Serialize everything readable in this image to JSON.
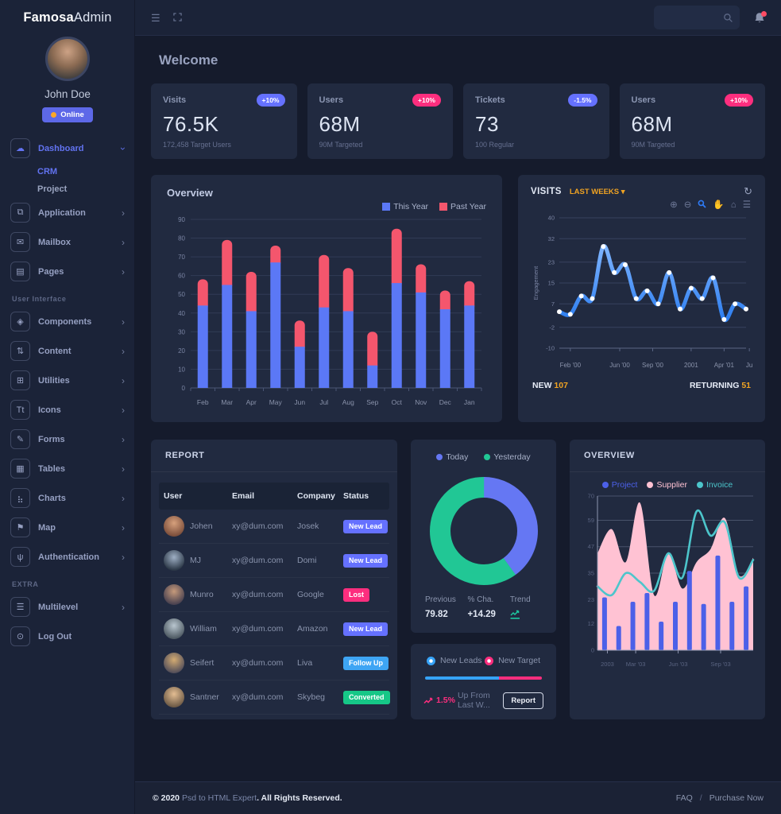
{
  "brand": {
    "bold": "Famosa",
    "light": "Admin"
  },
  "user": {
    "name": "John Doe",
    "status": "Online"
  },
  "welcome": "Welcome",
  "icons": {
    "hamburger": "☰",
    "refresh": "↻",
    "caret_down": "▾",
    "chevron_right": "›",
    "zoom_in": "⊕",
    "zoom_out": "⊖",
    "pan": "✋",
    "home": "⌂",
    "menu": "☰"
  },
  "sidebar": {
    "sections": [
      {
        "label": "",
        "items": [
          {
            "icon": "dashboard-icon",
            "glyph": "☁",
            "label": "Dashboard",
            "active": true,
            "chevron": "down",
            "children": [
              {
                "label": "CRM",
                "active": true
              },
              {
                "label": "Project",
                "active": false
              }
            ]
          },
          {
            "icon": "application-icon",
            "glyph": "⧉",
            "label": "Application",
            "chevron": "right"
          },
          {
            "icon": "mailbox-icon",
            "glyph": "✉",
            "label": "Mailbox",
            "chevron": "right"
          },
          {
            "icon": "pages-icon",
            "glyph": "▤",
            "label": "Pages",
            "chevron": "right"
          }
        ]
      },
      {
        "label": "User Interface",
        "items": [
          {
            "icon": "components-icon",
            "glyph": "◈",
            "label": "Components",
            "chevron": "right"
          },
          {
            "icon": "content-icon",
            "glyph": "⇅",
            "label": "Content",
            "chevron": "right"
          },
          {
            "icon": "utilities-icon",
            "glyph": "⊞",
            "label": "Utilities",
            "chevron": "right"
          },
          {
            "icon": "icons-icon",
            "glyph": "Tt",
            "label": "Icons",
            "chevron": "right"
          },
          {
            "icon": "forms-icon",
            "glyph": "✎",
            "label": "Forms",
            "chevron": "right"
          },
          {
            "icon": "tables-icon",
            "glyph": "▦",
            "label": "Tables",
            "chevron": "right"
          },
          {
            "icon": "charts-icon",
            "glyph": "⣦",
            "label": "Charts",
            "chevron": "right"
          },
          {
            "icon": "map-icon",
            "glyph": "⚑",
            "label": "Map",
            "chevron": "right"
          },
          {
            "icon": "authentication-icon",
            "glyph": "ψ",
            "label": "Authentication",
            "chevron": "right"
          }
        ]
      },
      {
        "label": "EXTRA",
        "items": [
          {
            "icon": "multilevel-icon",
            "glyph": "☰",
            "label": "Multilevel",
            "chevron": "right"
          },
          {
            "icon": "logout-icon",
            "glyph": "⊙",
            "label": "Log Out",
            "chevron": ""
          }
        ]
      }
    ]
  },
  "stat_cards": [
    {
      "title": "Visits",
      "badge": "+10%",
      "badge_color": "#6571ff",
      "value": "76.5K",
      "subtitle": "172,458 Target Users"
    },
    {
      "title": "Users",
      "badge": "+10%",
      "badge_color": "#fd2e7e",
      "value": "68M",
      "subtitle": "90M Targeted"
    },
    {
      "title": "Tickets",
      "badge": "-1.5%",
      "badge_color": "#6571ff",
      "value": "73",
      "subtitle": "100 Regular"
    },
    {
      "title": "Users",
      "badge": "+10%",
      "badge_color": "#fd2e7e",
      "value": "68M",
      "subtitle": "90M Targeted"
    }
  ],
  "chart_data": [
    {
      "id": "overview_bar",
      "type": "bar",
      "stacked": true,
      "title": "Overview",
      "categories": [
        "Feb",
        "Mar",
        "Apr",
        "May",
        "Jun",
        "Jul",
        "Aug",
        "Sep",
        "Oct",
        "Nov",
        "Dec",
        "Jan"
      ],
      "series": [
        {
          "name": "This Year",
          "color": "#5b78f6",
          "values": [
            44,
            55,
            41,
            67,
            22,
            43,
            41,
            12,
            56,
            51,
            42,
            44
          ]
        },
        {
          "name": "Past Year",
          "color": "#f4566d",
          "values": [
            14,
            24,
            21,
            9,
            14,
            28,
            23,
            18,
            29,
            15,
            10,
            13
          ]
        }
      ],
      "ylim": [
        0,
        90
      ],
      "yticks": [
        0,
        10,
        20,
        30,
        40,
        50,
        60,
        70,
        80,
        90
      ],
      "grid": true,
      "legend_position": "top-right"
    },
    {
      "id": "visits_line",
      "type": "line",
      "title": "VISITS",
      "subtitle": "LAST WEEKS",
      "ylabel": "Engagement",
      "ylim": [
        -10,
        40
      ],
      "yticks": [
        40,
        32,
        23,
        15,
        7,
        -2,
        -10
      ],
      "color": "#3f8efc",
      "marker_color": "#ffffff",
      "values": [
        4,
        3,
        10,
        9,
        29,
        19,
        22,
        9,
        12,
        7,
        19,
        5,
        13,
        9,
        17,
        1,
        7,
        5
      ],
      "xticks": [
        {
          "label": "Feb '00",
          "pos": 1
        },
        {
          "label": "Jun '00",
          "pos": 5.5
        },
        {
          "label": "Sep '00",
          "pos": 8.5
        },
        {
          "label": "2001",
          "pos": 12
        },
        {
          "label": "Apr '01",
          "pos": 15
        },
        {
          "label": "Ju",
          "pos": 17.3
        }
      ],
      "toolbar": [
        {
          "name": "zoom-in-icon",
          "glyph": "⊕",
          "active": false
        },
        {
          "name": "zoom-out-icon",
          "glyph": "⊖",
          "active": false
        },
        {
          "name": "zoom-box-icon",
          "glyph": "svg-magnifier",
          "active": true
        },
        {
          "name": "pan-icon",
          "glyph": "✋",
          "active": false
        },
        {
          "name": "home-icon",
          "glyph": "⌂",
          "active": false
        },
        {
          "name": "chart-menu-icon",
          "glyph": "☰",
          "active": false
        }
      ],
      "footer": {
        "new_label": "NEW",
        "new_value": "107",
        "returning_label": "RETURNING",
        "returning_value": "51"
      }
    },
    {
      "id": "today_donut",
      "type": "pie",
      "legend": [
        {
          "label": "Today",
          "color": "#6577f3",
          "value": 40
        },
        {
          "label": "Yesterday",
          "color": "#21c795",
          "value": 60
        }
      ],
      "stats": [
        {
          "label": "Previous",
          "value": "79.82"
        },
        {
          "label": "% Cha.",
          "value": "+14.29"
        },
        {
          "label": "Trend",
          "icon": "trend-up-icon",
          "icon_color": "#1dc9a0"
        }
      ]
    },
    {
      "id": "overview_mixed",
      "type": "area",
      "title": "OVERVIEW",
      "ylim": [
        0,
        70
      ],
      "yticks": [
        70,
        59,
        47,
        35,
        23,
        12,
        0
      ],
      "xticks": [
        {
          "label": "2003",
          "pos": 0.2
        },
        {
          "label": "Mar '03",
          "pos": 2.2
        },
        {
          "label": "Jun '03",
          "pos": 5.2
        },
        {
          "label": "Sep '03",
          "pos": 8.2
        }
      ],
      "series": [
        {
          "name": "Project",
          "type": "bar",
          "color": "#4c60e8",
          "values": [
            24,
            11,
            22,
            26,
            13,
            22,
            36,
            21,
            43,
            22,
            29
          ]
        },
        {
          "name": "Supplier",
          "type": "area",
          "color": "#ffc2d3",
          "values": [
            44,
            55,
            40,
            67,
            25,
            44,
            28,
            40,
            46,
            60,
            34,
            42
          ]
        },
        {
          "name": "Invoice",
          "type": "line",
          "color": "#4cc5cb",
          "values": [
            29,
            25,
            35,
            31,
            27,
            44,
            33,
            63,
            52,
            58,
            33,
            41
          ]
        }
      ]
    }
  ],
  "report": {
    "title": "REPORT",
    "columns": [
      "User",
      "Email",
      "Company",
      "Status"
    ],
    "rows": [
      {
        "user": "Johen",
        "email": "xy@dum.com",
        "company": "Josek",
        "status": "New Lead",
        "status_color": "#6571ff"
      },
      {
        "user": "MJ",
        "email": "xy@dum.com",
        "company": "Domi",
        "status": "New Lead",
        "status_color": "#6571ff"
      },
      {
        "user": "Munro",
        "email": "xy@dum.com",
        "company": "Google",
        "status": "Lost",
        "status_color": "#fd2e7e"
      },
      {
        "user": "William",
        "email": "xy@dum.com",
        "company": "Amazon",
        "status": "New Lead",
        "status_color": "#6571ff"
      },
      {
        "user": "Seifert",
        "email": "xy@dum.com",
        "company": "Liva",
        "status": "Follow Up",
        "status_color": "#3ea5f4"
      },
      {
        "user": "Santner",
        "email": "xy@dum.com",
        "company": "Skybeg",
        "status": "Converted",
        "status_color": "#16c787"
      }
    ]
  },
  "leads": {
    "items": [
      {
        "label": "New Leads",
        "color": "#36a3f7"
      },
      {
        "label": "New Target",
        "color": "#fd2e7e"
      }
    ],
    "progress": [
      {
        "color": "#36a3f7",
        "pct": 63
      },
      {
        "color": "#fd2e7e",
        "pct": 37
      }
    ],
    "note_value": "1.5%",
    "note_text": "Up From Last W...",
    "button": "Report"
  },
  "footer": {
    "copyright": "© 2020",
    "link": "Psd to HTML Expert",
    "suffix": ". All Rights Reserved.",
    "faq": "FAQ",
    "separator": "/",
    "purchase": "Purchase Now"
  }
}
